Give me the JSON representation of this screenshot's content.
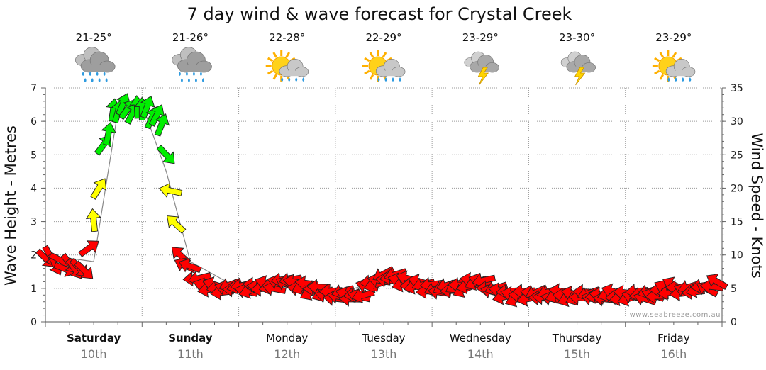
{
  "chart_data": {
    "type": "line",
    "title": "7 day wind & wave forecast for Crystal Creek",
    "ylabel_left": "Wave Height - Metres",
    "ylabel_right": "Wind Speed - Knots",
    "ylim_left": [
      0,
      7
    ],
    "ylim_right": [
      0,
      35
    ],
    "left_ticks": [
      "0",
      "1",
      "2",
      "3",
      "4",
      "5",
      "6",
      "7"
    ],
    "right_ticks": [
      "0",
      "5",
      "10",
      "15",
      "20",
      "25",
      "30",
      "35"
    ],
    "days": [
      {
        "name": "Saturday",
        "date": "10th",
        "bold": true,
        "temp": "21-25°",
        "weather": "rain-cloud-icon"
      },
      {
        "name": "Sunday",
        "date": "11th",
        "bold": true,
        "temp": "21-26°",
        "weather": "rain-cloud-icon"
      },
      {
        "name": "Monday",
        "date": "12th",
        "bold": false,
        "temp": "22-28°",
        "weather": "sun-rain-icon"
      },
      {
        "name": "Tuesday",
        "date": "13th",
        "bold": false,
        "temp": "22-29°",
        "weather": "sun-rain-icon"
      },
      {
        "name": "Wednesday",
        "date": "14th",
        "bold": false,
        "temp": "23-29°",
        "weather": "storm-cloud-icon"
      },
      {
        "name": "Thursday",
        "date": "15th",
        "bold": false,
        "temp": "23-30°",
        "weather": "storm-cloud-icon"
      },
      {
        "name": "Friday",
        "date": "16th",
        "bold": false,
        "temp": "23-29°",
        "weather": "sun-rain-icon"
      }
    ],
    "wave_series": {
      "name": "Wave Height",
      "unit": "m",
      "x_days": [
        0.0,
        0.25,
        0.5,
        0.75,
        1.0,
        1.25,
        1.5,
        2.0,
        2.5,
        3.0,
        3.5,
        4.0,
        4.5,
        5.0,
        5.5,
        6.0,
        6.5,
        7.0
      ],
      "values": [
        2.0,
        1.9,
        1.8,
        6.3,
        6.5,
        4.5,
        1.8,
        1.0,
        1.1,
        0.8,
        1.3,
        1.0,
        1.2,
        0.8,
        0.9,
        0.8,
        0.9,
        1.2
      ]
    },
    "wind_series": {
      "name": "Wind",
      "unit": "knots",
      "x_days": [
        0.0,
        0.1,
        0.2,
        0.3,
        0.4,
        0.5,
        0.6,
        0.7,
        0.8,
        0.9,
        1.0,
        1.1,
        1.2,
        1.3,
        1.4,
        1.5,
        1.6,
        1.75,
        2.0,
        2.25,
        2.5,
        2.75,
        3.0,
        3.25,
        3.5,
        3.75,
        4.0,
        4.25,
        4.5,
        4.75,
        5.0,
        5.25,
        5.5,
        5.75,
        6.0,
        6.25,
        6.5,
        6.75,
        6.95
      ],
      "values": [
        9.5,
        9,
        8.5,
        8.5,
        8,
        15,
        26,
        31,
        32,
        31,
        32,
        31,
        30,
        20,
        10,
        8,
        6,
        5,
        5,
        5,
        6,
        5,
        4,
        4,
        7,
        6,
        5,
        5,
        6,
        4,
        4,
        4,
        4,
        4,
        4,
        4,
        5,
        4.5,
        6
      ],
      "direction_deg": [
        135,
        140,
        130,
        135,
        130,
        10,
        20,
        15,
        30,
        10,
        15,
        20,
        10,
        300,
        300,
        290,
        270,
        270,
        265,
        270,
        280,
        260,
        270,
        275,
        260,
        270,
        265,
        250,
        270,
        270,
        260,
        270,
        265,
        270,
        270,
        270,
        280,
        260,
        300
      ],
      "colors_by_speed": {
        "light": "#ff0000",
        "moderate": "#ffff00",
        "strong": "#00ee00"
      }
    },
    "credit": "www.seabreeze.com.au"
  }
}
